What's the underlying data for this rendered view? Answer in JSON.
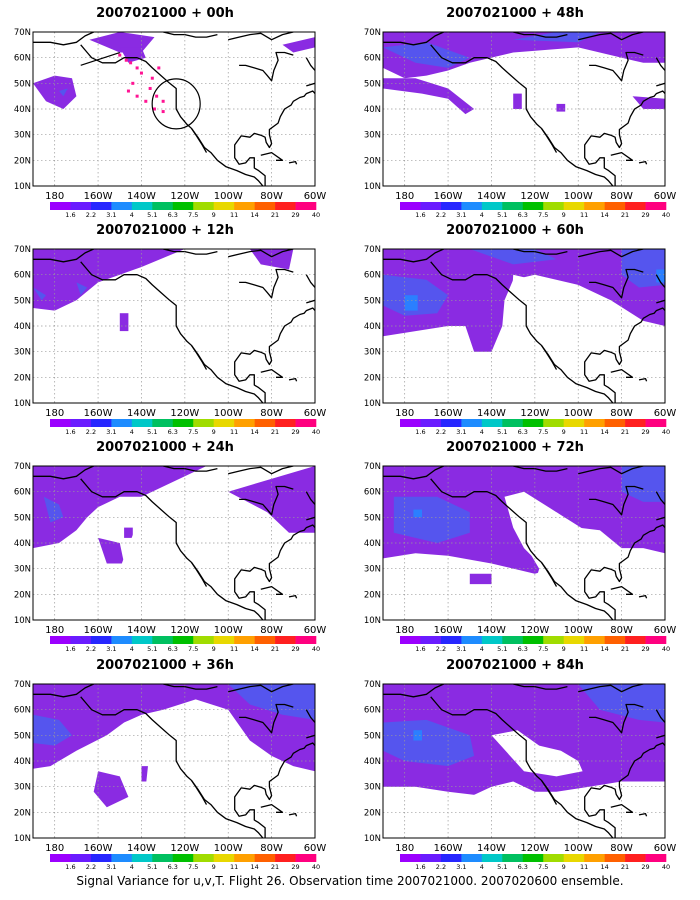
{
  "colors": {
    "scale": [
      "#9b00ff",
      "#6a1cff",
      "#2727ff",
      "#1e8cff",
      "#00c8c8",
      "#00c060",
      "#00c000",
      "#a0dc00",
      "#e8d800",
      "#ffa000",
      "#ff6000",
      "#ff2020",
      "#ff007f"
    ],
    "fill_low": "#8a2be2",
    "fill_mid": "#5555ee",
    "fill_high": "#2b7fff",
    "obs_dots": "#ff1493"
  },
  "caption": "Signal Variance for u,v,T. Flight 26. Observation time 2007021000. 2007020600 ensemble.",
  "chart_data": {
    "type": "heatmap",
    "layout": "4 rows x 2 columns of map panels",
    "x_ticks": [
      "180",
      "160W",
      "140W",
      "120W",
      "100W",
      "80W",
      "60W"
    ],
    "y_ticks": [
      "10N",
      "20N",
      "30N",
      "40N",
      "50N",
      "60N",
      "70N"
    ],
    "xlim_lon_east": [
      -190,
      -60
    ],
    "ylim_lat": [
      10,
      70
    ],
    "grid": true,
    "colorbar_labels": [
      "1.6",
      "2.2",
      "3.1",
      "4",
      "5.1",
      "6.3",
      "7.5",
      "9",
      "11",
      "14",
      "21",
      "29",
      "40"
    ],
    "panels": [
      {
        "title": "2007021000 + 00h"
      },
      {
        "title": "2007021000 + 48h"
      },
      {
        "title": "2007021000 + 12h"
      },
      {
        "title": "2007021000 + 60h"
      },
      {
        "title": "2007021000 + 24h"
      },
      {
        "title": "2007021000 + 72h"
      },
      {
        "title": "2007021000 + 36h"
      },
      {
        "title": "2007021000 + 84h"
      }
    ]
  }
}
